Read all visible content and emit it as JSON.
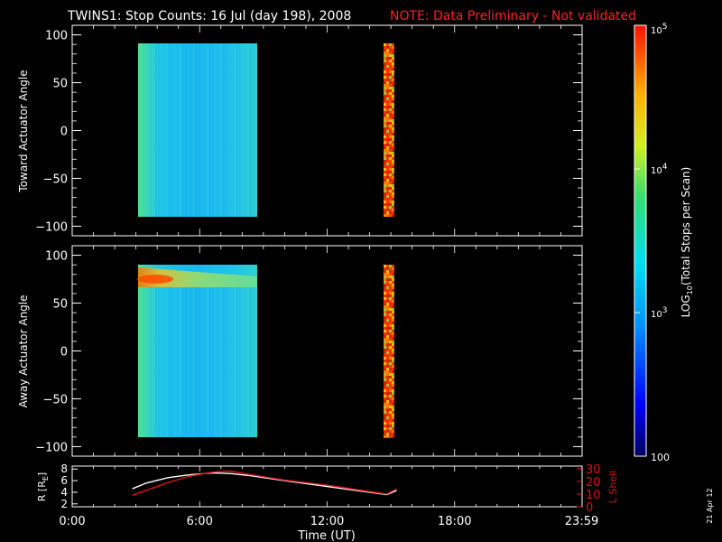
{
  "header": {
    "title": "TWINS1: Stop Counts: 16 Jul (day 198), 2008",
    "note": "NOTE: Data Preliminary - Not validated"
  },
  "side_stamp": "21 Apr 12",
  "colors": {
    "background": "#000000",
    "axis": "#ffffff",
    "note": "#ff2020",
    "r_line": "#ffffff",
    "l_shell_line": "#e01010"
  },
  "colorbar": {
    "label_prefix": "LOG",
    "label_sub": "10",
    "label_suffix": "(Total Stops per Scan)",
    "tick_top_base": "10",
    "tick_top_exp": "5",
    "tick_mid_base": "10",
    "tick_mid_exp": "4",
    "tick_low_base": "10",
    "tick_low_exp": "3",
    "tick_bottom": "100"
  },
  "chart_data": [
    {
      "type": "heatmap",
      "title": "",
      "ylabel": "Toward Actuator Angle",
      "ylim": [
        -110,
        110
      ],
      "yticks": [
        "100",
        "50",
        "0",
        "−50",
        "−100"
      ],
      "ytick_values": [
        100,
        50,
        0,
        -50,
        -100
      ],
      "x_range_hours": [
        0,
        24
      ],
      "color_scale": "log10",
      "color_range": [
        100,
        100000
      ],
      "blocks": [
        {
          "t_start": 2.83,
          "t_end": 8.67,
          "angle_min": -88,
          "angle_max": 90,
          "level": "about 1e3 to 3e3"
        },
        {
          "t_start": 14.8,
          "t_end": 15.27,
          "angle_min": -88,
          "angle_max": 90,
          "level": "about 5e4 to 1e5"
        }
      ]
    },
    {
      "type": "heatmap",
      "title": "",
      "ylabel": "Away Actuator Angle",
      "ylim": [
        -110,
        110
      ],
      "yticks": [
        "100",
        "50",
        "0",
        "−50",
        "−100"
      ],
      "ytick_values": [
        100,
        50,
        0,
        -50,
        -100
      ],
      "x_range_hours": [
        0,
        24
      ],
      "color_scale": "log10",
      "color_range": [
        100,
        100000
      ],
      "blocks": [
        {
          "t_start": 2.83,
          "t_end": 8.67,
          "angle_min": -90,
          "angle_max": 90,
          "level": "about 1e3 to 3e3, enhanced near +75 deg"
        },
        {
          "t_start": 14.8,
          "t_end": 15.27,
          "angle_min": -90,
          "angle_max": 90,
          "level": "about 5e4 to 1e5"
        }
      ]
    },
    {
      "type": "line",
      "xlabel": "Time (UT)",
      "xticks": [
        "0:00",
        "6:00",
        "12:00",
        "18:00",
        "23:59"
      ],
      "xtick_values": [
        0,
        6,
        12,
        18,
        23.98
      ],
      "xlim": [
        0,
        24
      ],
      "ylabel_left": "R [R",
      "ylabel_left_sub": "E",
      "ylabel_left_suffix": "]",
      "ylim_left": [
        1.5,
        8.5
      ],
      "yticks_left": [
        "8",
        "6",
        "4",
        "2"
      ],
      "ytick_values_left": [
        8,
        6,
        4,
        2
      ],
      "ylabel_right": "L Shell",
      "ylim_right": [
        0,
        32
      ],
      "yticks_right": [
        "30",
        "20",
        "10",
        "0"
      ],
      "ytick_values_right": [
        30,
        20,
        10,
        0
      ],
      "series": [
        {
          "axis": "left",
          "x": [
            2.83,
            3.5,
            4.5,
            5.5,
            6.5,
            7.0,
            7.5,
            8.5,
            10,
            12,
            14,
            14.8,
            15.27
          ],
          "y": [
            4.6,
            5.6,
            6.5,
            7.0,
            7.3,
            7.3,
            7.2,
            6.8,
            6.0,
            5.0,
            4.0,
            3.6,
            4.3
          ]
        },
        {
          "axis": "right",
          "x": [
            2.83,
            3.5,
            4.5,
            5.5,
            6.5,
            7.0,
            7.5,
            8.5,
            10,
            12,
            14,
            14.8,
            15.27
          ],
          "y": [
            9,
            13,
            19,
            24,
            27,
            28,
            28,
            25,
            21,
            17,
            12,
            10,
            14
          ]
        }
      ]
    }
  ]
}
